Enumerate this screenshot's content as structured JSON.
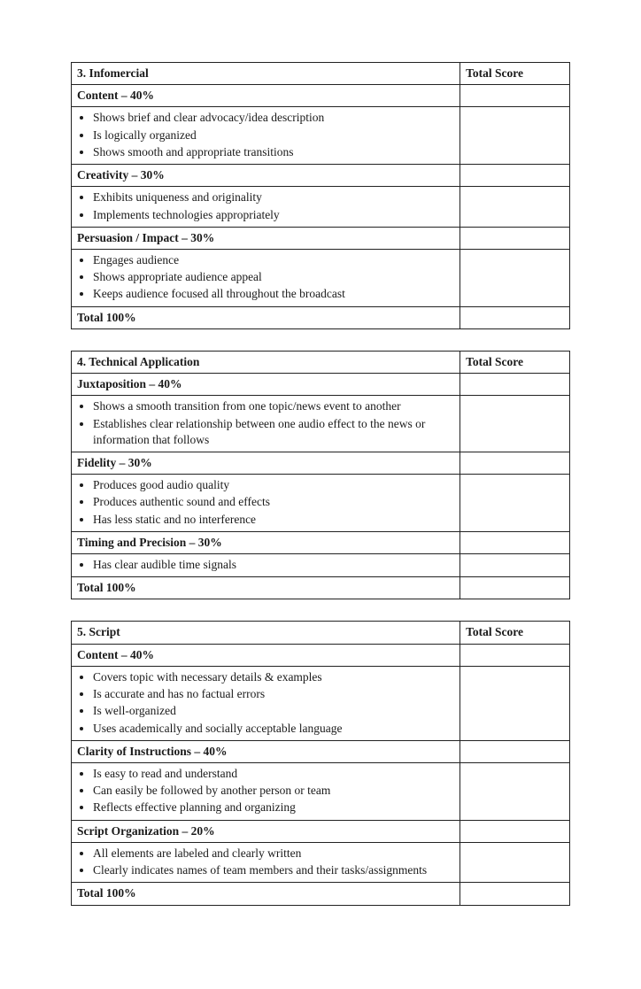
{
  "score_header": "Total Score",
  "tables": [
    {
      "title": "3. Infomercial",
      "sections": [
        {
          "header": "Content – 40%",
          "bullets": [
            "Shows brief and clear advocacy/idea description",
            "Is logically organized",
            "Shows smooth and appropriate transitions"
          ]
        },
        {
          "header": "Creativity – 30%",
          "bullets": [
            "Exhibits uniqueness and originality",
            "Implements technologies appropriately"
          ]
        },
        {
          "header": "Persuasion / Impact – 30%",
          "bullets": [
            "Engages audience",
            "Shows appropriate audience appeal",
            "Keeps audience focused all throughout the broadcast"
          ]
        }
      ],
      "total": "Total 100%"
    },
    {
      "title": "4. Technical Application",
      "sections": [
        {
          "header": "Juxtaposition – 40%",
          "bullets": [
            "Shows a smooth transition from one topic/news event to another",
            "Establishes clear relationship between one audio effect to the news or information that follows"
          ]
        },
        {
          "header": "Fidelity – 30%",
          "bullets": [
            "Produces good audio quality",
            "Produces authentic sound and effects",
            "Has less static and no interference"
          ]
        },
        {
          "header": "Timing and Precision – 30%",
          "bullets": [
            "Has clear audible time signals"
          ]
        }
      ],
      "total": "Total 100%"
    },
    {
      "title": "5. Script",
      "sections": [
        {
          "header": "Content – 40%",
          "bullets": [
            "Covers topic with necessary details & examples",
            "Is accurate and has no factual errors",
            "Is well-organized",
            "Uses academically and socially acceptable language"
          ]
        },
        {
          "header": "Clarity of Instructions – 40%",
          "bullets": [
            "Is easy to read and understand",
            "Can easily be followed by another person or team",
            "Reflects effective planning and organizing"
          ]
        },
        {
          "header": "Script Organization – 20%",
          "bullets": [
            "All elements are labeled and clearly written",
            "Clearly indicates names of team members and their tasks/assignments"
          ]
        }
      ],
      "total": "Total 100%"
    }
  ]
}
